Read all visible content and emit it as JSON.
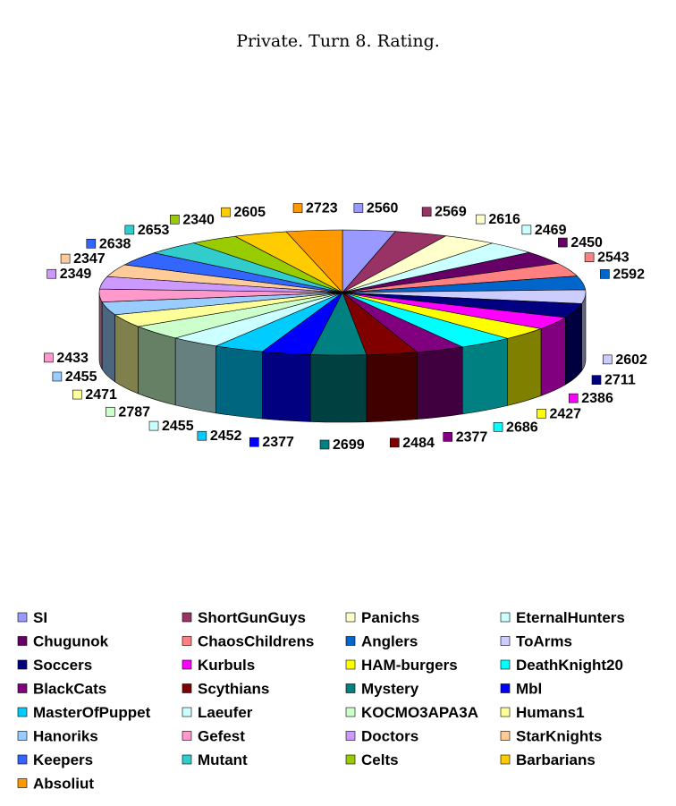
{
  "chart_data": {
    "type": "pie",
    "three_d": true,
    "title": "Private. Turn 8. Rating.",
    "legend_position": "bottom",
    "labels_shown": "values",
    "slices": [
      {
        "name": "SI",
        "value": 2560,
        "color": "#9999FF"
      },
      {
        "name": "ShortGunGuys",
        "value": 2569,
        "color": "#993366"
      },
      {
        "name": "Panichs",
        "value": 2616,
        "color": "#FFFFCC"
      },
      {
        "name": "EternalHunters",
        "value": 2469,
        "color": "#CCFFFF"
      },
      {
        "name": "Chugunok",
        "value": 2450,
        "color": "#660066"
      },
      {
        "name": "ChaosChildrens",
        "value": 2543,
        "color": "#FF8080"
      },
      {
        "name": "Anglers",
        "value": 2592,
        "color": "#0066CC"
      },
      {
        "name": "ToArms",
        "value": 2602,
        "color": "#CCCCFF"
      },
      {
        "name": "Soccers",
        "value": 2711,
        "color": "#000080"
      },
      {
        "name": "Kurbuls",
        "value": 2386,
        "color": "#FF00FF"
      },
      {
        "name": "HAM-burgers",
        "value": 2427,
        "color": "#FFFF00"
      },
      {
        "name": "DeathKnight20",
        "value": 2686,
        "color": "#00FFFF"
      },
      {
        "name": "BlackCats",
        "value": 2377,
        "color": "#800080"
      },
      {
        "name": "Scythians",
        "value": 2484,
        "color": "#800000"
      },
      {
        "name": "Mystery",
        "value": 2699,
        "color": "#008080"
      },
      {
        "name": "Mbl",
        "value": 2377,
        "color": "#0000FF"
      },
      {
        "name": "MasterOfPuppet",
        "value": 2452,
        "color": "#00CCFF"
      },
      {
        "name": "Laeufer",
        "value": 2455,
        "color": "#CCFFFF"
      },
      {
        "name": "KOCMO3APA3A",
        "value": 2787,
        "color": "#CCFFCC"
      },
      {
        "name": "Humans1",
        "value": 2471,
        "color": "#FFFF99"
      },
      {
        "name": "Hanoriks",
        "value": 2455,
        "color": "#99CCFF"
      },
      {
        "name": "Gefest",
        "value": 2433,
        "color": "#FF99CC"
      },
      {
        "name": "Doctors",
        "value": 2349,
        "color": "#CC99FF"
      },
      {
        "name": "StarKnights",
        "value": 2347,
        "color": "#FFCC99"
      },
      {
        "name": "Keepers",
        "value": 2638,
        "color": "#3366FF"
      },
      {
        "name": "Mutant",
        "value": 2653,
        "color": "#33CCCC"
      },
      {
        "name": "Celts",
        "value": 2340,
        "color": "#99CC00"
      },
      {
        "name": "Barbarians",
        "value": 2605,
        "color": "#FFCC00"
      },
      {
        "name": "Absoliut",
        "value": 2723,
        "color": "#FF9900"
      }
    ]
  }
}
